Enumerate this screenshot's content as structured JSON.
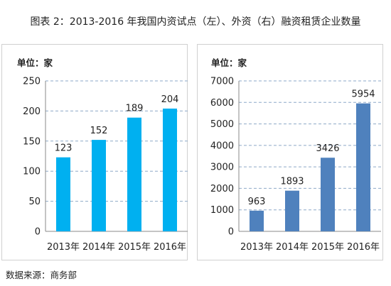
{
  "figure": {
    "title": "图表 2：2013-2016 年我国内资试点（左）、外资（右）融资租赁企业数量",
    "source": "数据来源：商务部"
  },
  "chart_data": [
    {
      "type": "bar",
      "unit_label": "单位：家",
      "categories": [
        "2013年",
        "2014年",
        "2015年",
        "2016年"
      ],
      "values": [
        123,
        152,
        189,
        204
      ],
      "ylim": [
        0,
        250
      ],
      "yticks": [
        0,
        50,
        100,
        150,
        200,
        250
      ],
      "grid": true,
      "bar_color": "#00b0f0"
    },
    {
      "type": "bar",
      "unit_label": "单位：家",
      "categories": [
        "2013年",
        "2014年",
        "2015年",
        "2016年"
      ],
      "values": [
        963,
        1893,
        3426,
        5954
      ],
      "ylim": [
        0,
        7000
      ],
      "yticks": [
        0,
        1000,
        2000,
        3000,
        4000,
        5000,
        6000,
        7000
      ],
      "grid": true,
      "bar_color": "#4f81bd"
    }
  ]
}
